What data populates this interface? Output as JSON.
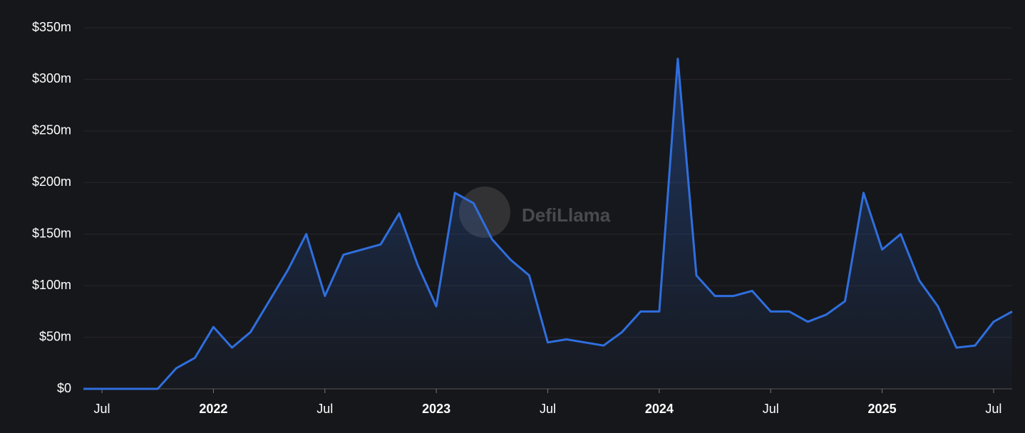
{
  "chart_data": {
    "type": "area",
    "watermark": "DefiLlama",
    "color": "#2f6fde",
    "grid": true,
    "x": [
      "2021-06",
      "2021-07",
      "2021-08",
      "2021-09",
      "2021-10",
      "2021-11",
      "2021-12",
      "2022-01",
      "2022-02",
      "2022-03",
      "2022-04",
      "2022-05",
      "2022-06",
      "2022-07",
      "2022-08",
      "2022-09",
      "2022-10",
      "2022-11",
      "2022-12",
      "2023-01",
      "2023-02",
      "2023-03",
      "2023-04",
      "2023-05",
      "2023-06",
      "2023-07",
      "2023-08",
      "2023-09",
      "2023-10",
      "2023-11",
      "2023-12",
      "2024-01",
      "2024-02",
      "2024-03",
      "2024-04",
      "2024-05",
      "2024-06",
      "2024-07",
      "2024-08",
      "2024-09",
      "2024-10",
      "2024-11",
      "2024-12",
      "2025-01",
      "2025-02",
      "2025-03",
      "2025-04",
      "2025-05",
      "2025-06",
      "2025-07",
      "2025-08"
    ],
    "values": [
      0,
      0,
      0,
      0,
      0,
      20,
      30,
      60,
      40,
      55,
      85,
      115,
      150,
      90,
      130,
      135,
      140,
      170,
      120,
      80,
      190,
      180,
      145,
      125,
      110,
      45,
      48,
      45,
      42,
      55,
      75,
      75,
      320,
      110,
      90,
      90,
      95,
      75,
      75,
      65,
      72,
      85,
      190,
      135,
      150,
      105,
      80,
      40,
      42,
      65,
      75
    ],
    "xlim": [
      "2021-06",
      "2025-08"
    ],
    "xticks": [
      {
        "value": "2021-07",
        "label": "Jul"
      },
      {
        "value": "2022-01",
        "label": "2022"
      },
      {
        "value": "2022-07",
        "label": "Jul"
      },
      {
        "value": "2023-01",
        "label": "2023"
      },
      {
        "value": "2023-07",
        "label": "Jul"
      },
      {
        "value": "2024-01",
        "label": "2024"
      },
      {
        "value": "2024-07",
        "label": "Jul"
      },
      {
        "value": "2025-01",
        "label": "2025"
      },
      {
        "value": "2025-07",
        "label": "Jul"
      }
    ],
    "ylim": [
      0,
      350
    ],
    "yticks": [
      {
        "value": 0,
        "label": "$0"
      },
      {
        "value": 50,
        "label": "$50m"
      },
      {
        "value": 100,
        "label": "$100m"
      },
      {
        "value": 150,
        "label": "$150m"
      },
      {
        "value": 200,
        "label": "$200m"
      },
      {
        "value": 250,
        "label": "$250m"
      },
      {
        "value": 300,
        "label": "$300m"
      },
      {
        "value": 350,
        "label": "$350m"
      }
    ]
  }
}
